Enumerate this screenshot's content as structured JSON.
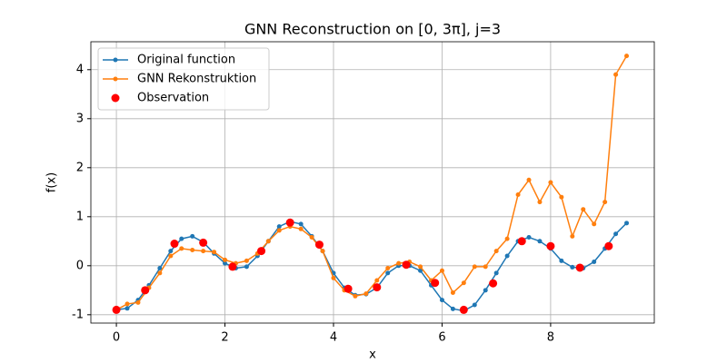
{
  "chart_data": {
    "type": "line",
    "title": "GNN Reconstruction on [0, 3π], j=3",
    "x_label": "x",
    "y_label": "f(x)",
    "xlim": [
      -0.47,
      9.91
    ],
    "ylim": [
      -1.17,
      4.57
    ],
    "xticks": [
      0,
      2,
      4,
      6,
      8
    ],
    "yticks": [
      -1,
      0,
      1,
      2,
      3,
      4
    ],
    "grid": true,
    "legend": "upper left",
    "x": [
      0,
      0.2,
      0.4,
      0.6,
      0.8,
      1.0,
      1.2,
      1.4,
      1.6,
      1.8,
      2.0,
      2.2,
      2.4,
      2.6,
      2.8,
      3.0,
      3.2,
      3.4,
      3.6,
      3.8,
      4.0,
      4.2,
      4.4,
      4.6,
      4.8,
      5.0,
      5.2,
      5.4,
      5.6,
      5.8,
      6.0,
      6.2,
      6.4,
      6.6,
      6.8,
      7.0,
      7.2,
      7.4,
      7.6,
      7.8,
      8.0,
      8.2,
      8.4,
      8.6,
      8.8,
      9.0,
      9.2,
      9.4
    ],
    "series": [
      {
        "name": "Original function",
        "type": "line",
        "color": "#1f77b4",
        "values": [
          -0.9,
          -0.87,
          -0.7,
          -0.4,
          -0.05,
          0.3,
          0.55,
          0.6,
          0.48,
          0.25,
          0.05,
          -0.05,
          -0.02,
          0.2,
          0.5,
          0.8,
          0.9,
          0.85,
          0.6,
          0.3,
          -0.15,
          -0.45,
          -0.6,
          -0.58,
          -0.45,
          -0.15,
          0.0,
          0.0,
          -0.1,
          -0.4,
          -0.7,
          -0.88,
          -0.92,
          -0.8,
          -0.5,
          -0.15,
          0.2,
          0.5,
          0.58,
          0.5,
          0.35,
          0.1,
          -0.03,
          -0.05,
          0.08,
          0.35,
          0.65,
          0.87
        ]
      },
      {
        "name": "GNN Rekonstruktion",
        "type": "line",
        "color": "#ff7f0e",
        "values": [
          -0.9,
          -0.78,
          -0.75,
          -0.45,
          -0.15,
          0.2,
          0.35,
          0.32,
          0.3,
          0.28,
          0.12,
          0.05,
          0.1,
          0.25,
          0.5,
          0.72,
          0.8,
          0.75,
          0.58,
          0.3,
          -0.25,
          -0.5,
          -0.62,
          -0.57,
          -0.3,
          -0.05,
          0.05,
          0.08,
          -0.02,
          -0.3,
          -0.1,
          -0.55,
          -0.35,
          -0.02,
          -0.02,
          0.3,
          0.55,
          1.45,
          1.75,
          1.3,
          1.7,
          1.4,
          0.6,
          1.15,
          0.85,
          1.3,
          3.9,
          4.28
        ]
      },
      {
        "name": "Observation",
        "type": "scatter",
        "color": "#ff0000",
        "x": [
          0,
          0.53,
          1.07,
          1.6,
          2.14,
          2.67,
          3.2,
          3.74,
          4.27,
          4.8,
          5.34,
          5.87,
          6.4,
          6.94,
          7.47,
          8.0,
          8.54,
          9.07
        ],
        "values": [
          -0.9,
          -0.5,
          0.45,
          0.47,
          -0.02,
          0.3,
          0.88,
          0.43,
          -0.47,
          -0.44,
          0.02,
          -0.35,
          -0.9,
          -0.36,
          0.5,
          0.4,
          -0.04,
          0.4
        ]
      }
    ]
  }
}
